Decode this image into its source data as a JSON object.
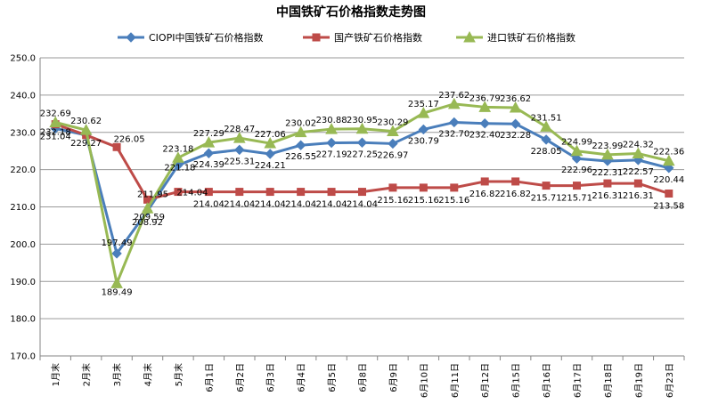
{
  "chart_data": {
    "type": "line",
    "title": "中国铁矿石价格指数走势图",
    "categories": [
      "1月末",
      "2月末",
      "3月末",
      "4月末",
      "5月末",
      "6月1日",
      "6月2日",
      "6月3日",
      "6月4日",
      "6月5日",
      "6月8日",
      "6月9日",
      "6月10日",
      "6月11日",
      "6月12日",
      "6月15日",
      "6月16日",
      "6月17日",
      "6月18日",
      "6月19日",
      "6月23日"
    ],
    "ylim": [
      170,
      250
    ],
    "yticks": [
      "170.0",
      "180.0",
      "190.0",
      "200.0",
      "210.0",
      "220.0",
      "230.0",
      "240.0",
      "250.0"
    ],
    "grid": true,
    "legend_position": "top",
    "series": [
      {
        "name": "CIOPI中国铁矿石价格指数",
        "color": "#4a7ebb",
        "marker": "diamond",
        "values": [
          231.04,
          229.27,
          197.49,
          208.92,
          221.18,
          224.39,
          225.31,
          224.21,
          226.55,
          227.19,
          227.25,
          226.97,
          230.79,
          232.7,
          232.4,
          232.28,
          228.05,
          222.96,
          222.31,
          222.57,
          220.44
        ],
        "labels": [
          "231.04",
          "229.27",
          "197.49",
          "208.92",
          "221.18",
          "224.39",
          "225.31",
          "224.21",
          "226.55",
          "227.19",
          "227.25",
          "226.97",
          "230.79",
          "232.70",
          "232.40",
          "232.28",
          "228.05",
          "222.96",
          "222.31",
          "222.57",
          "220.44"
        ]
      },
      {
        "name": "国产铁矿石价格指数",
        "color": "#be4b48",
        "marker": "square",
        "values": [
          232.18,
          229.27,
          226.05,
          211.95,
          214.04,
          214.04,
          214.04,
          214.04,
          214.04,
          214.04,
          214.04,
          215.16,
          215.16,
          215.16,
          216.82,
          216.82,
          215.71,
          215.71,
          216.31,
          216.31,
          213.58
        ],
        "labels": [
          "232.18",
          "",
          "226.05",
          "211.95",
          "214.04",
          "214.04",
          "214.04",
          "214.04",
          "214.04",
          "214.04",
          "214.04",
          "215.16",
          "215.16",
          "215.16",
          "216.82",
          "216.82",
          "215.71",
          "215.71",
          "216.31",
          "216.31",
          "213.58"
        ]
      },
      {
        "name": "进口铁矿石价格指数",
        "color": "#98b954",
        "marker": "triangle",
        "values": [
          232.69,
          230.62,
          189.49,
          209.59,
          223.18,
          227.29,
          228.47,
          227.06,
          230.02,
          230.88,
          230.95,
          230.29,
          235.17,
          237.62,
          236.79,
          236.62,
          231.51,
          224.99,
          223.99,
          224.32,
          222.36
        ],
        "labels": [
          "232.69",
          "230.62",
          "189.49",
          "209.59",
          "223.18",
          "227.29",
          "228.47",
          "227.06",
          "230.02",
          "230.88",
          "230.95",
          "230.29",
          "235.17",
          "237.62",
          "236.79",
          "236.62",
          "231.51",
          "224.99",
          "223.99",
          "224.32",
          "222.36"
        ]
      }
    ]
  }
}
